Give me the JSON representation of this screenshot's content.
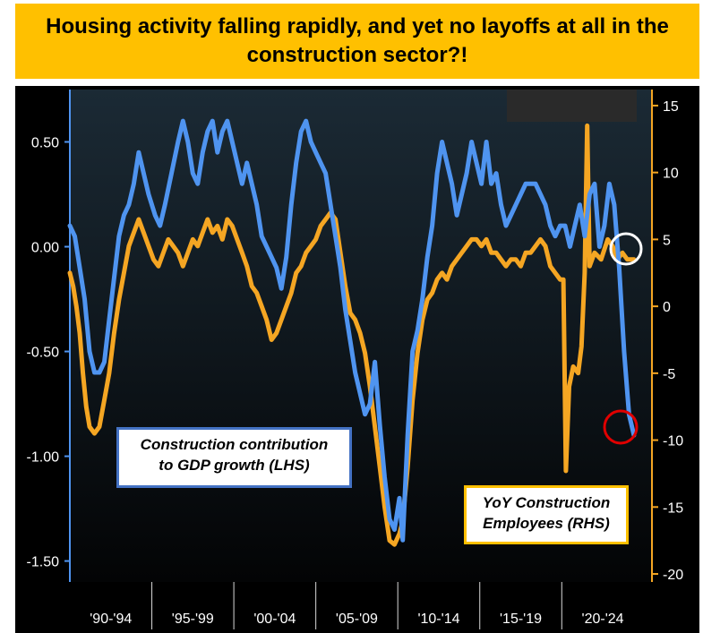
{
  "title": "Housing activity falling rapidly, and yet no layoffs at all in the construction sector?!",
  "chart_data": {
    "type": "line",
    "x_tick_labels": [
      "'90-'94",
      "'95-'99",
      "'00-'04",
      "'05-'09",
      "'10-'14",
      "'15-'19",
      "'20-'24"
    ],
    "xlim": [
      1990,
      2025.5
    ],
    "y_left": {
      "ticks": [
        "0.50",
        "0.00",
        "-0.50",
        "-1.00",
        "-1.50"
      ],
      "ylim": [
        -1.6,
        0.75
      ]
    },
    "y_right": {
      "ticks": [
        "15",
        "10",
        "5",
        "0",
        "-5",
        "-10",
        "-15",
        "-20"
      ],
      "ylim": [
        -20.6,
        16.2
      ]
    },
    "series": [
      {
        "name": "Construction contribution to GDP growth (LHS)",
        "axis": "left",
        "color": "#4f94f0",
        "points": [
          [
            1990.0,
            0.1
          ],
          [
            1990.3,
            0.05
          ],
          [
            1990.6,
            -0.1
          ],
          [
            1990.9,
            -0.25
          ],
          [
            1991.2,
            -0.5
          ],
          [
            1991.5,
            -0.6
          ],
          [
            1991.8,
            -0.6
          ],
          [
            1992.1,
            -0.55
          ],
          [
            1992.4,
            -0.35
          ],
          [
            1992.7,
            -0.15
          ],
          [
            1993.0,
            0.05
          ],
          [
            1993.3,
            0.15
          ],
          [
            1993.6,
            0.2
          ],
          [
            1993.9,
            0.3
          ],
          [
            1994.2,
            0.45
          ],
          [
            1994.5,
            0.35
          ],
          [
            1994.8,
            0.25
          ],
          [
            1995.2,
            0.15
          ],
          [
            1995.5,
            0.1
          ],
          [
            1995.8,
            0.2
          ],
          [
            1996.2,
            0.35
          ],
          [
            1996.6,
            0.5
          ],
          [
            1996.9,
            0.6
          ],
          [
            1997.2,
            0.5
          ],
          [
            1997.5,
            0.35
          ],
          [
            1997.8,
            0.3
          ],
          [
            1998.1,
            0.45
          ],
          [
            1998.4,
            0.55
          ],
          [
            1998.7,
            0.6
          ],
          [
            1999.0,
            0.45
          ],
          [
            1999.3,
            0.55
          ],
          [
            1999.6,
            0.6
          ],
          [
            1999.9,
            0.5
          ],
          [
            2000.2,
            0.4
          ],
          [
            2000.5,
            0.3
          ],
          [
            2000.8,
            0.4
          ],
          [
            2001.1,
            0.3
          ],
          [
            2001.4,
            0.2
          ],
          [
            2001.7,
            0.05
          ],
          [
            2002.0,
            0.0
          ],
          [
            2002.3,
            -0.05
          ],
          [
            2002.6,
            -0.1
          ],
          [
            2002.9,
            -0.2
          ],
          [
            2003.2,
            -0.05
          ],
          [
            2003.5,
            0.2
          ],
          [
            2003.8,
            0.4
          ],
          [
            2004.1,
            0.55
          ],
          [
            2004.4,
            0.6
          ],
          [
            2004.7,
            0.5
          ],
          [
            2005.0,
            0.45
          ],
          [
            2005.3,
            0.4
          ],
          [
            2005.6,
            0.35
          ],
          [
            2005.9,
            0.2
          ],
          [
            2006.2,
            0.05
          ],
          [
            2006.5,
            -0.1
          ],
          [
            2006.8,
            -0.3
          ],
          [
            2007.1,
            -0.45
          ],
          [
            2007.4,
            -0.6
          ],
          [
            2007.7,
            -0.7
          ],
          [
            2008.0,
            -0.8
          ],
          [
            2008.3,
            -0.75
          ],
          [
            2008.6,
            -0.55
          ],
          [
            2008.9,
            -0.85
          ],
          [
            2009.2,
            -1.1
          ],
          [
            2009.5,
            -1.3
          ],
          [
            2009.8,
            -1.35
          ],
          [
            2010.1,
            -1.2
          ],
          [
            2010.3,
            -1.4
          ],
          [
            2010.6,
            -0.9
          ],
          [
            2010.9,
            -0.5
          ],
          [
            2011.2,
            -0.4
          ],
          [
            2011.5,
            -0.25
          ],
          [
            2011.8,
            -0.05
          ],
          [
            2012.1,
            0.1
          ],
          [
            2012.4,
            0.35
          ],
          [
            2012.7,
            0.5
          ],
          [
            2013.0,
            0.4
          ],
          [
            2013.3,
            0.3
          ],
          [
            2013.6,
            0.15
          ],
          [
            2013.9,
            0.25
          ],
          [
            2014.2,
            0.35
          ],
          [
            2014.5,
            0.5
          ],
          [
            2014.8,
            0.4
          ],
          [
            2015.1,
            0.3
          ],
          [
            2015.4,
            0.5
          ],
          [
            2015.7,
            0.3
          ],
          [
            2016.0,
            0.35
          ],
          [
            2016.3,
            0.2
          ],
          [
            2016.6,
            0.1
          ],
          [
            2016.9,
            0.15
          ],
          [
            2017.2,
            0.2
          ],
          [
            2017.5,
            0.25
          ],
          [
            2017.8,
            0.3
          ],
          [
            2018.1,
            0.3
          ],
          [
            2018.4,
            0.3
          ],
          [
            2018.7,
            0.25
          ],
          [
            2019.0,
            0.2
          ],
          [
            2019.3,
            0.1
          ],
          [
            2019.6,
            0.05
          ],
          [
            2019.9,
            0.1
          ],
          [
            2020.2,
            0.1
          ],
          [
            2020.5,
            0.0
          ],
          [
            2020.8,
            0.1
          ],
          [
            2021.1,
            0.2
          ],
          [
            2021.4,
            0.05
          ],
          [
            2021.7,
            0.25
          ],
          [
            2022.0,
            0.3
          ],
          [
            2022.3,
            0.0
          ],
          [
            2022.6,
            0.1
          ],
          [
            2022.9,
            0.3
          ],
          [
            2023.2,
            0.2
          ],
          [
            2023.5,
            -0.1
          ],
          [
            2023.8,
            -0.5
          ],
          [
            2024.1,
            -0.8
          ],
          [
            2024.4,
            -0.9
          ]
        ]
      },
      {
        "name": "YoY Construction Employees (RHS)",
        "axis": "right",
        "color": "#f5a623",
        "points": [
          [
            1990.0,
            2.5
          ],
          [
            1990.2,
            1.5
          ],
          [
            1990.4,
            0.0
          ],
          [
            1990.6,
            -2.0
          ],
          [
            1990.8,
            -5.0
          ],
          [
            1991.0,
            -7.5
          ],
          [
            1991.2,
            -9.0
          ],
          [
            1991.5,
            -9.5
          ],
          [
            1991.8,
            -9.0
          ],
          [
            1992.1,
            -7.0
          ],
          [
            1992.4,
            -5.0
          ],
          [
            1992.7,
            -2.0
          ],
          [
            1993.0,
            0.5
          ],
          [
            1993.3,
            2.5
          ],
          [
            1993.6,
            4.5
          ],
          [
            1993.9,
            5.5
          ],
          [
            1994.2,
            6.5
          ],
          [
            1994.5,
            5.5
          ],
          [
            1994.8,
            4.5
          ],
          [
            1995.1,
            3.5
          ],
          [
            1995.4,
            3.0
          ],
          [
            1995.7,
            4.0
          ],
          [
            1996.0,
            5.0
          ],
          [
            1996.3,
            4.5
          ],
          [
            1996.6,
            4.0
          ],
          [
            1996.9,
            3.0
          ],
          [
            1997.2,
            4.0
          ],
          [
            1997.5,
            5.0
          ],
          [
            1997.8,
            4.5
          ],
          [
            1998.1,
            5.5
          ],
          [
            1998.4,
            6.5
          ],
          [
            1998.7,
            5.5
          ],
          [
            1999.0,
            6.0
          ],
          [
            1999.3,
            5.0
          ],
          [
            1999.6,
            6.5
          ],
          [
            1999.9,
            6.0
          ],
          [
            2000.2,
            5.0
          ],
          [
            2000.5,
            4.0
          ],
          [
            2000.8,
            3.0
          ],
          [
            2001.1,
            1.5
          ],
          [
            2001.4,
            1.0
          ],
          [
            2001.7,
            0.0
          ],
          [
            2002.0,
            -1.0
          ],
          [
            2002.3,
            -2.5
          ],
          [
            2002.6,
            -2.0
          ],
          [
            2002.9,
            -1.0
          ],
          [
            2003.2,
            0.0
          ],
          [
            2003.5,
            1.0
          ],
          [
            2003.8,
            2.5
          ],
          [
            2004.1,
            3.0
          ],
          [
            2004.4,
            4.0
          ],
          [
            2004.7,
            4.5
          ],
          [
            2005.0,
            5.0
          ],
          [
            2005.3,
            6.0
          ],
          [
            2005.6,
            6.5
          ],
          [
            2005.9,
            7.0
          ],
          [
            2006.2,
            6.5
          ],
          [
            2006.5,
            4.0
          ],
          [
            2006.8,
            1.5
          ],
          [
            2007.1,
            -0.5
          ],
          [
            2007.4,
            -1.0
          ],
          [
            2007.7,
            -2.0
          ],
          [
            2008.0,
            -3.5
          ],
          [
            2008.3,
            -6.0
          ],
          [
            2008.6,
            -9.0
          ],
          [
            2008.9,
            -12.0
          ],
          [
            2009.2,
            -15.0
          ],
          [
            2009.5,
            -17.5
          ],
          [
            2009.8,
            -17.8
          ],
          [
            2010.1,
            -17.0
          ],
          [
            2010.3,
            -16.0
          ],
          [
            2010.6,
            -12.0
          ],
          [
            2010.9,
            -7.0
          ],
          [
            2011.2,
            -3.5
          ],
          [
            2011.5,
            -1.0
          ],
          [
            2011.8,
            0.5
          ],
          [
            2012.1,
            1.0
          ],
          [
            2012.4,
            2.0
          ],
          [
            2012.7,
            2.5
          ],
          [
            2013.0,
            2.0
          ],
          [
            2013.3,
            3.0
          ],
          [
            2013.6,
            3.5
          ],
          [
            2013.9,
            4.0
          ],
          [
            2014.2,
            4.5
          ],
          [
            2014.5,
            5.0
          ],
          [
            2014.8,
            5.0
          ],
          [
            2015.1,
            4.5
          ],
          [
            2015.4,
            5.0
          ],
          [
            2015.7,
            4.0
          ],
          [
            2016.0,
            4.0
          ],
          [
            2016.3,
            3.5
          ],
          [
            2016.6,
            3.0
          ],
          [
            2016.9,
            3.5
          ],
          [
            2017.2,
            3.5
          ],
          [
            2017.5,
            3.0
          ],
          [
            2017.8,
            4.0
          ],
          [
            2018.1,
            4.0
          ],
          [
            2018.4,
            4.5
          ],
          [
            2018.7,
            5.0
          ],
          [
            2019.0,
            4.5
          ],
          [
            2019.3,
            3.0
          ],
          [
            2019.6,
            2.5
          ],
          [
            2019.9,
            2.0
          ],
          [
            2020.1,
            2.0
          ],
          [
            2020.25,
            -12.3
          ],
          [
            2020.45,
            -6.0
          ],
          [
            2020.7,
            -4.5
          ],
          [
            2021.0,
            -5.0
          ],
          [
            2021.2,
            -3.0
          ],
          [
            2021.4,
            2.5
          ],
          [
            2021.55,
            13.5
          ],
          [
            2021.7,
            3.0
          ],
          [
            2022.0,
            4.0
          ],
          [
            2022.4,
            3.5
          ],
          [
            2022.8,
            5.0
          ],
          [
            2023.1,
            4.5
          ],
          [
            2023.4,
            3.5
          ],
          [
            2023.7,
            4.0
          ],
          [
            2024.0,
            3.5
          ],
          [
            2024.4,
            3.5
          ]
        ]
      }
    ],
    "legend": [
      {
        "line1": "Construction contribution",
        "line2": "to GDP growth (LHS)"
      },
      {
        "line1": "YoY Construction",
        "line2": "Employees (RHS)"
      }
    ],
    "annotations": [
      {
        "type": "circle",
        "color": "#ffffff",
        "near": "end of employment series"
      },
      {
        "type": "circle",
        "color": "#e00000",
        "near": "end of GDP series"
      }
    ]
  }
}
